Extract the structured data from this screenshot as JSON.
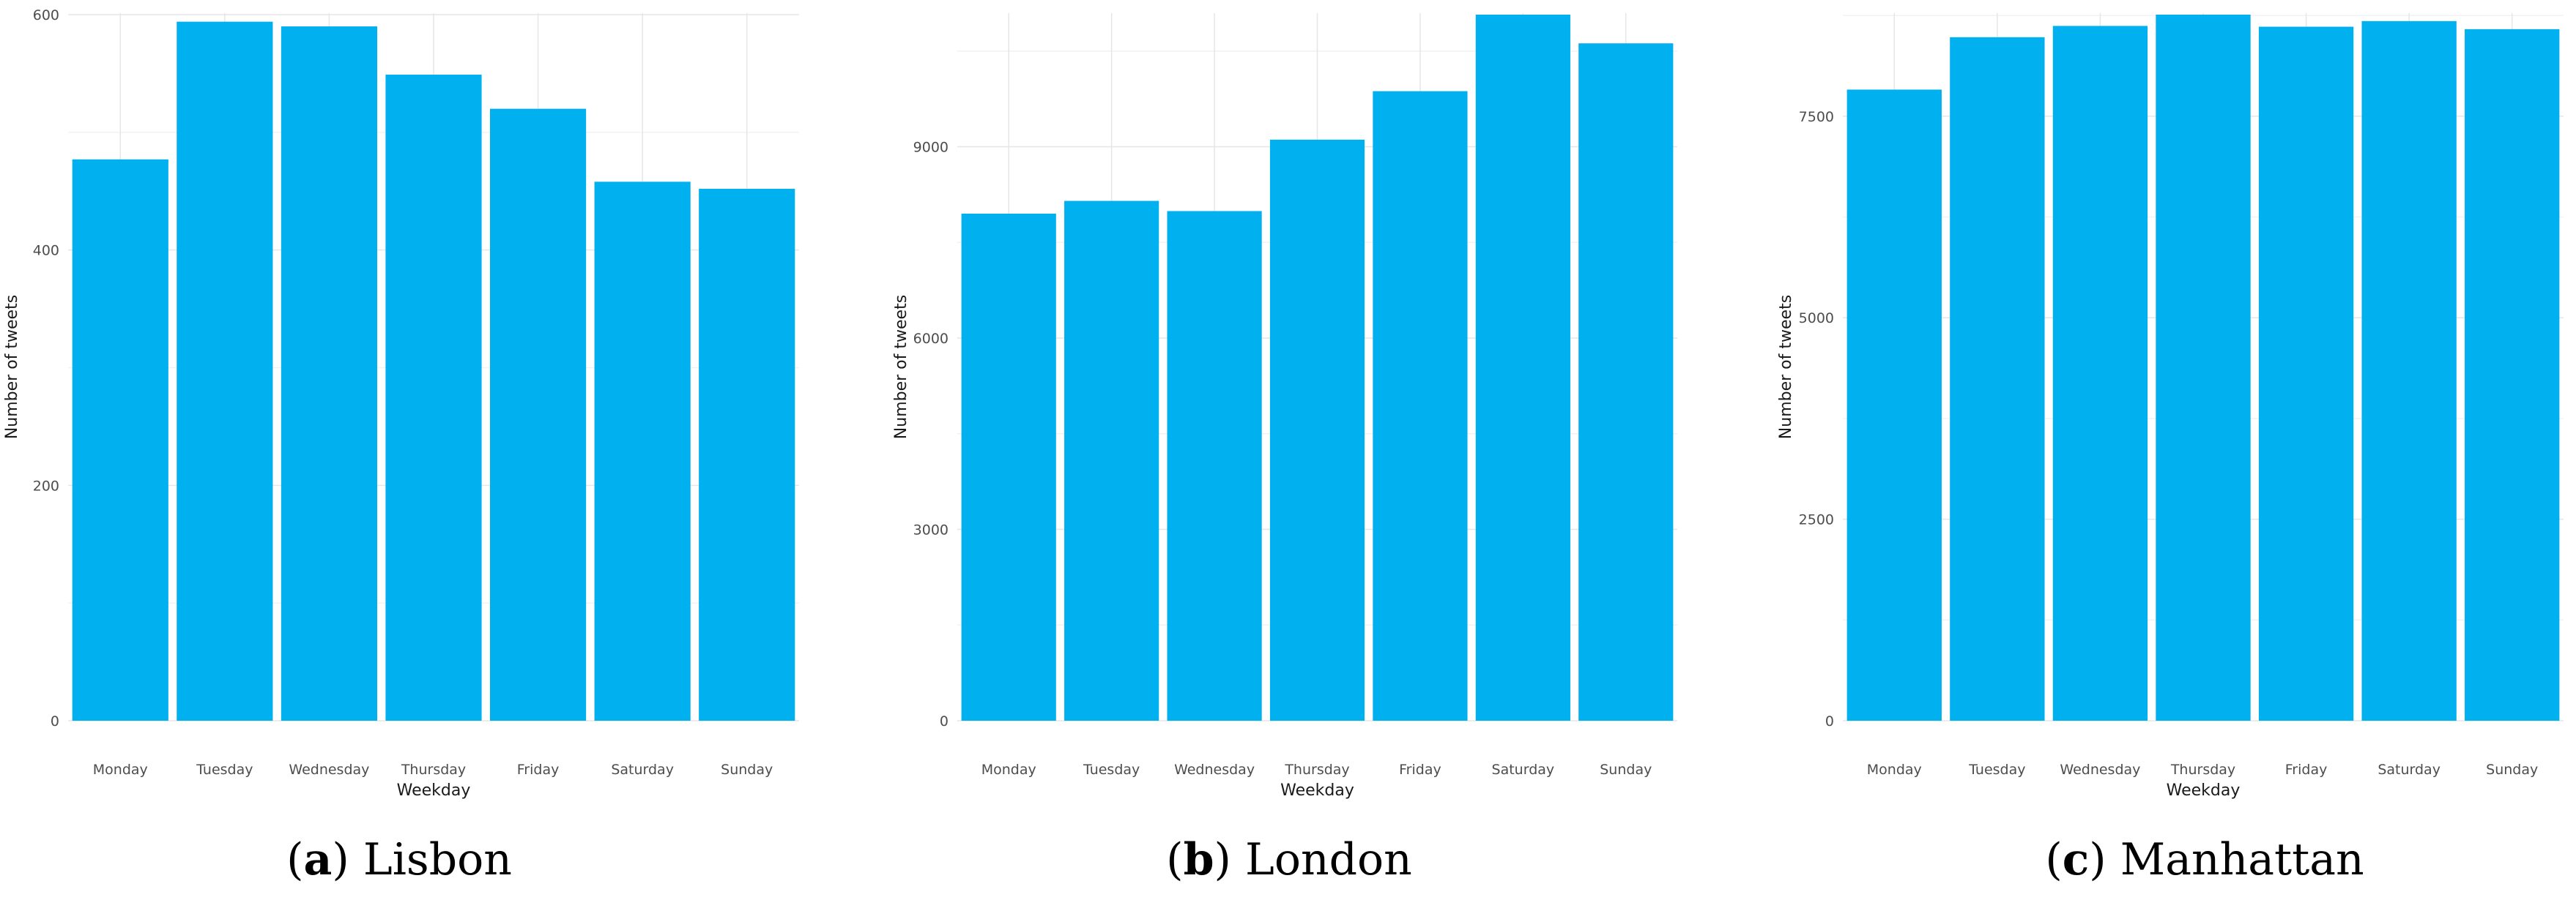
{
  "colors": {
    "bar": "#00b0ef",
    "grid_major": "#e6e6e6",
    "grid_minor": "#f2f2f2",
    "background": "#ffffff"
  },
  "chart_data": [
    {
      "type": "bar",
      "caption_letter": "a",
      "caption_text": "Lisbon",
      "xlabel": "Weekday",
      "ylabel": "Number of tweets",
      "categories": [
        "Monday",
        "Tuesday",
        "Wednesday",
        "Thursday",
        "Friday",
        "Saturday",
        "Sunday"
      ],
      "values": [
        477,
        594,
        590,
        549,
        520,
        458,
        452
      ],
      "yticks": [
        0,
        200,
        400,
        600
      ],
      "ylim": [
        0,
        600
      ],
      "grid": true
    },
    {
      "type": "bar",
      "caption_letter": "b",
      "caption_text": "London",
      "xlabel": "Weekday",
      "ylabel": "Number of tweets",
      "categories": [
        "Monday",
        "Tuesday",
        "Wednesday",
        "Thursday",
        "Friday",
        "Saturday",
        "Sunday"
      ],
      "values": [
        7950,
        8150,
        7990,
        9110,
        9870,
        11070,
        10620
      ],
      "yticks": [
        0,
        3000,
        6000,
        9000
      ],
      "ylim": [
        0,
        11070
      ],
      "grid": true
    },
    {
      "type": "bar",
      "caption_letter": "c",
      "caption_text": "Manhattan",
      "xlabel": "Weekday",
      "ylabel": "Number of tweets",
      "categories": [
        "Monday",
        "Tuesday",
        "Wednesday",
        "Thursday",
        "Friday",
        "Saturday",
        "Sunday"
      ],
      "values": [
        7830,
        8480,
        8620,
        8760,
        8610,
        8680,
        8580
      ],
      "yticks": [
        0,
        2500,
        5000,
        7500
      ],
      "ylim": [
        0,
        8760
      ],
      "grid": true
    }
  ]
}
